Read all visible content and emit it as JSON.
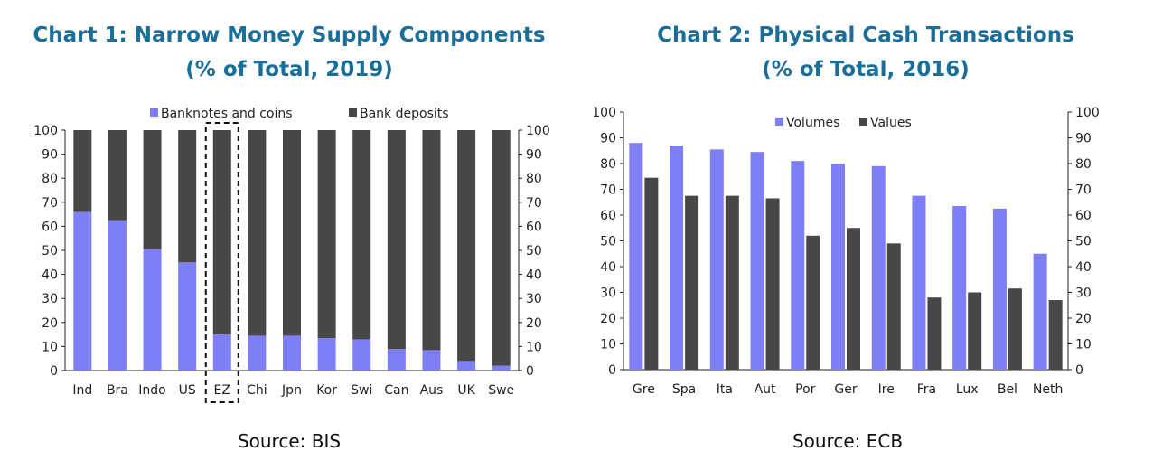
{
  "chart_data": [
    {
      "type": "bar",
      "stacked": true,
      "title": "Chart 1: Narrow Money Supply Components",
      "subtitle": "(% of Total, 2019)",
      "source": "Source: BIS",
      "categories": [
        "Ind",
        "Bra",
        "Indo",
        "US",
        "EZ",
        "Chi",
        "Jpn",
        "Kor",
        "Swi",
        "Can",
        "Aus",
        "UK",
        "Swe"
      ],
      "series": [
        {
          "name": "Banknotes and coins",
          "color": "#7f7ff5",
          "values": [
            66,
            62.5,
            50.5,
            45,
            15,
            14.5,
            14.5,
            13.5,
            13,
            9,
            8.5,
            4,
            2
          ]
        },
        {
          "name": "Bank deposits",
          "color": "#474747",
          "values": [
            34,
            37.5,
            49.5,
            55,
            85,
            85.5,
            85.5,
            86.5,
            87,
            91,
            91.5,
            96,
            98
          ]
        }
      ],
      "highlight": "EZ",
      "ylim": [
        0,
        100
      ],
      "yticks": [
        0,
        10,
        20,
        30,
        40,
        50,
        60,
        70,
        80,
        90,
        100
      ],
      "legend_position": "top",
      "grid": false
    },
    {
      "type": "bar",
      "title": "Chart 2: Physical Cash Transactions",
      "subtitle": "(% of Total, 2016)",
      "source": "Source: ECB",
      "categories": [
        "Gre",
        "Spa",
        "Ita",
        "Aut",
        "Por",
        "Ger",
        "Ire",
        "Fra",
        "Lux",
        "Bel",
        "Neth"
      ],
      "series": [
        {
          "name": "Volumes",
          "color": "#7f7ff5",
          "values": [
            88,
            87,
            85.5,
            84.5,
            81,
            80,
            79,
            67.5,
            63.5,
            62.5,
            45
          ]
        },
        {
          "name": "Values",
          "color": "#474747",
          "values": [
            74.5,
            67.5,
            67.5,
            66.5,
            52,
            55,
            49,
            28,
            30,
            31.5,
            27
          ]
        }
      ],
      "ylim": [
        0,
        100
      ],
      "yticks": [
        0,
        10,
        20,
        30,
        40,
        50,
        60,
        70,
        80,
        90,
        100
      ],
      "legend_position": "top",
      "grid": false
    }
  ]
}
